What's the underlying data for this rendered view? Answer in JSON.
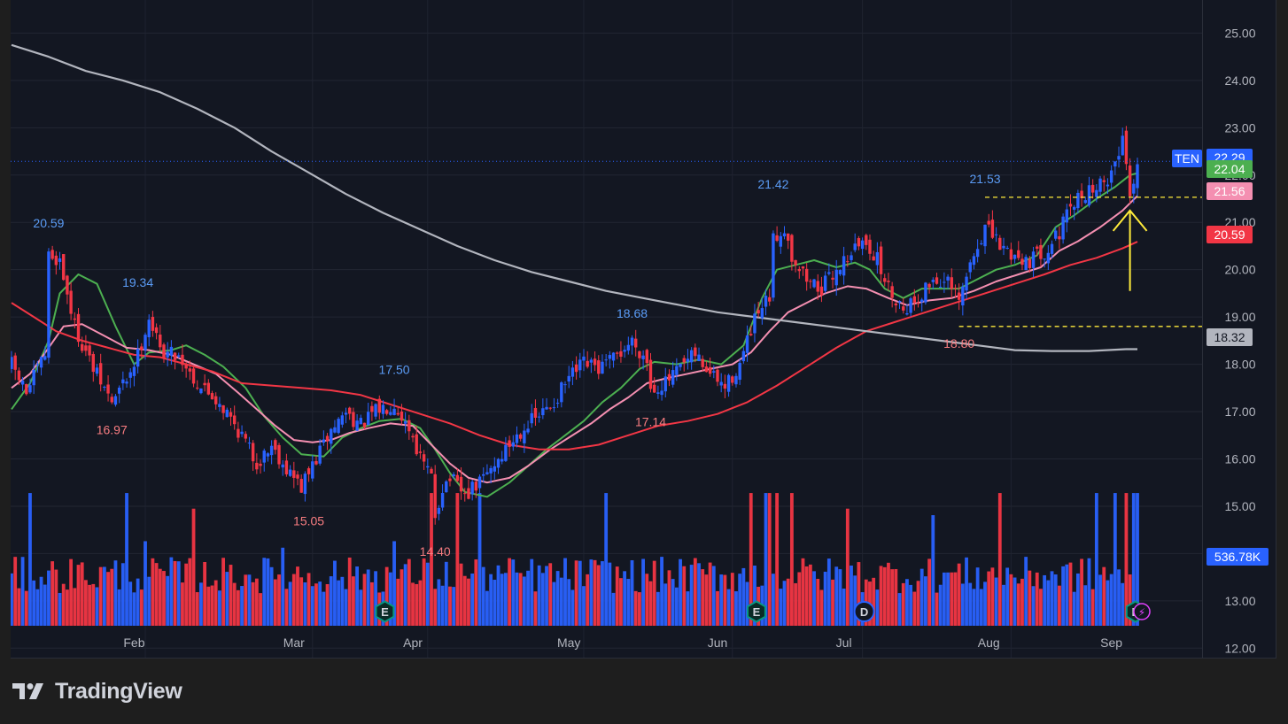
{
  "chart_data": {
    "type": "candlestick",
    "symbol": "TEN",
    "x_tick_labels": [
      "Feb",
      "Mar",
      "Apr",
      "May",
      "Jun",
      "Jul",
      "Aug",
      "Sep"
    ],
    "ylim": [
      11.8,
      25.7
    ],
    "y_tick_labels": [
      "25.00",
      "24.00",
      "23.00",
      "22.00",
      "21.00",
      "20.00",
      "19.00",
      "18.00",
      "17.00",
      "16.00",
      "15.00",
      "14.00",
      "13.00",
      "12.00"
    ],
    "price_badges": [
      {
        "label": "TEN",
        "value": "22.29",
        "color": "#2962ff"
      },
      {
        "label": "",
        "value": "22.04",
        "color": "#4caf50"
      },
      {
        "label": "",
        "value": "21.56",
        "color": "#f48fb1"
      },
      {
        "label": "",
        "value": "20.59",
        "color": "#f23645"
      },
      {
        "label": "",
        "value": "18.32",
        "color": "#b2b5be"
      },
      {
        "label": "",
        "value": "536.78K",
        "color": "#2962ff"
      }
    ],
    "high_low_labels": [
      {
        "text": "20.59",
        "kind": "high",
        "day": 10
      },
      {
        "text": "19.34",
        "kind": "high",
        "day": 34
      },
      {
        "text": "16.97",
        "kind": "low",
        "day": 27
      },
      {
        "text": "15.05",
        "kind": "low",
        "day": 80
      },
      {
        "text": "17.50",
        "kind": "high",
        "day": 103
      },
      {
        "text": "14.40",
        "kind": "low",
        "day": 114
      },
      {
        "text": "18.68",
        "kind": "high",
        "day": 167
      },
      {
        "text": "17.14",
        "kind": "low",
        "day": 172
      },
      {
        "text": "21.42",
        "kind": "high",
        "day": 205
      },
      {
        "text": "21.53",
        "kind": "high",
        "day": 262
      },
      {
        "text": "18.80",
        "kind": "low",
        "day": 255
      }
    ],
    "hlines": [
      {
        "y": 21.53,
        "color": "#ffeb3b",
        "style": "dashed"
      },
      {
        "y": 18.8,
        "color": "#ffeb3b",
        "style": "dashed"
      }
    ],
    "annotations": [
      {
        "type": "arrow",
        "color": "#ffeb3b",
        "day": 301,
        "from_y": 19.55,
        "to_y": 21.25
      }
    ],
    "event_markers": [
      {
        "label": "E",
        "day": 100
      },
      {
        "label": "E",
        "day": 200
      },
      {
        "label": "D",
        "day": 229
      },
      {
        "label": "E",
        "day": 302
      }
    ],
    "moving_averages": [
      {
        "color": "#4caf50",
        "points": [
          [
            0,
            17.05
          ],
          [
            5,
            17.6
          ],
          [
            10,
            18.5
          ],
          [
            13,
            19.5
          ],
          [
            18,
            19.9
          ],
          [
            23,
            19.7
          ],
          [
            28,
            18.8
          ],
          [
            33,
            18.0
          ],
          [
            37,
            18.25
          ],
          [
            43,
            18.3
          ],
          [
            47,
            18.4
          ],
          [
            52,
            18.2
          ],
          [
            57,
            17.95
          ],
          [
            63,
            17.5
          ],
          [
            68,
            16.9
          ],
          [
            73,
            16.45
          ],
          [
            78,
            16.1
          ],
          [
            84,
            16.05
          ],
          [
            89,
            16.45
          ],
          [
            94,
            16.65
          ],
          [
            99,
            16.8
          ],
          [
            105,
            16.85
          ],
          [
            110,
            16.65
          ],
          [
            114,
            16.2
          ],
          [
            118,
            15.7
          ],
          [
            122,
            15.3
          ],
          [
            128,
            15.2
          ],
          [
            134,
            15.5
          ],
          [
            139,
            15.85
          ],
          [
            144,
            16.2
          ],
          [
            149,
            16.5
          ],
          [
            154,
            16.8
          ],
          [
            159,
            17.2
          ],
          [
            164,
            17.5
          ],
          [
            169,
            17.9
          ],
          [
            173,
            18.05
          ],
          [
            179,
            18.0
          ],
          [
            185,
            18.1
          ],
          [
            191,
            18.0
          ],
          [
            197,
            18.4
          ],
          [
            202,
            19.4
          ],
          [
            206,
            20.0
          ],
          [
            211,
            20.1
          ],
          [
            216,
            20.2
          ],
          [
            222,
            20.05
          ],
          [
            227,
            20.15
          ],
          [
            231,
            20.0
          ],
          [
            235,
            19.6
          ],
          [
            240,
            19.4
          ],
          [
            245,
            19.6
          ],
          [
            250,
            19.6
          ],
          [
            255,
            19.6
          ],
          [
            260,
            19.8
          ],
          [
            265,
            20.0
          ],
          [
            270,
            20.1
          ],
          [
            276,
            20.3
          ],
          [
            281,
            20.9
          ],
          [
            286,
            21.15
          ],
          [
            292,
            21.5
          ],
          [
            297,
            21.75
          ],
          [
            301,
            22.0
          ],
          [
            303,
            22.04
          ]
        ]
      },
      {
        "color": "#f48fb1",
        "points": [
          [
            0,
            17.5
          ],
          [
            5,
            17.8
          ],
          [
            10,
            18.35
          ],
          [
            14,
            18.8
          ],
          [
            19,
            18.85
          ],
          [
            25,
            18.6
          ],
          [
            31,
            18.35
          ],
          [
            37,
            18.3
          ],
          [
            43,
            18.2
          ],
          [
            49,
            18.0
          ],
          [
            55,
            17.8
          ],
          [
            61,
            17.4
          ],
          [
            66,
            17.05
          ],
          [
            71,
            16.7
          ],
          [
            76,
            16.4
          ],
          [
            81,
            16.35
          ],
          [
            86,
            16.4
          ],
          [
            91,
            16.55
          ],
          [
            96,
            16.65
          ],
          [
            102,
            16.75
          ],
          [
            108,
            16.7
          ],
          [
            113,
            16.3
          ],
          [
            118,
            15.9
          ],
          [
            123,
            15.6
          ],
          [
            128,
            15.5
          ],
          [
            134,
            15.6
          ],
          [
            139,
            15.85
          ],
          [
            145,
            16.2
          ],
          [
            150,
            16.45
          ],
          [
            156,
            16.75
          ],
          [
            161,
            17.05
          ],
          [
            166,
            17.3
          ],
          [
            171,
            17.6
          ],
          [
            176,
            17.7
          ],
          [
            182,
            17.8
          ],
          [
            188,
            17.9
          ],
          [
            194,
            18.0
          ],
          [
            199,
            18.25
          ],
          [
            204,
            18.7
          ],
          [
            209,
            19.1
          ],
          [
            214,
            19.3
          ],
          [
            219,
            19.5
          ],
          [
            225,
            19.65
          ],
          [
            230,
            19.6
          ],
          [
            236,
            19.4
          ],
          [
            241,
            19.25
          ],
          [
            247,
            19.35
          ],
          [
            253,
            19.4
          ],
          [
            259,
            19.55
          ],
          [
            265,
            19.75
          ],
          [
            271,
            19.9
          ],
          [
            277,
            20.05
          ],
          [
            282,
            20.4
          ],
          [
            287,
            20.6
          ],
          [
            293,
            20.9
          ],
          [
            299,
            21.25
          ],
          [
            303,
            21.56
          ]
        ]
      },
      {
        "color": "#f23645",
        "points": [
          [
            0,
            19.3
          ],
          [
            6,
            19.0
          ],
          [
            12,
            18.7
          ],
          [
            19,
            18.5
          ],
          [
            26,
            18.35
          ],
          [
            33,
            18.2
          ],
          [
            40,
            18.15
          ],
          [
            47,
            18.0
          ],
          [
            54,
            17.85
          ],
          [
            62,
            17.6
          ],
          [
            70,
            17.55
          ],
          [
            78,
            17.5
          ],
          [
            86,
            17.45
          ],
          [
            94,
            17.35
          ],
          [
            102,
            17.15
          ],
          [
            110,
            16.95
          ],
          [
            118,
            16.75
          ],
          [
            126,
            16.5
          ],
          [
            134,
            16.3
          ],
          [
            142,
            16.2
          ],
          [
            150,
            16.2
          ],
          [
            158,
            16.3
          ],
          [
            166,
            16.5
          ],
          [
            174,
            16.7
          ],
          [
            182,
            16.8
          ],
          [
            190,
            16.95
          ],
          [
            198,
            17.2
          ],
          [
            206,
            17.55
          ],
          [
            214,
            17.95
          ],
          [
            222,
            18.35
          ],
          [
            230,
            18.7
          ],
          [
            238,
            18.9
          ],
          [
            246,
            19.1
          ],
          [
            254,
            19.3
          ],
          [
            262,
            19.5
          ],
          [
            270,
            19.7
          ],
          [
            278,
            19.9
          ],
          [
            285,
            20.1
          ],
          [
            292,
            20.25
          ],
          [
            299,
            20.45
          ],
          [
            303,
            20.59
          ]
        ]
      },
      {
        "color": "#b2b5be",
        "points": [
          [
            0,
            24.75
          ],
          [
            10,
            24.5
          ],
          [
            20,
            24.2
          ],
          [
            30,
            24.0
          ],
          [
            40,
            23.75
          ],
          [
            50,
            23.4
          ],
          [
            60,
            23.0
          ],
          [
            70,
            22.5
          ],
          [
            80,
            22.05
          ],
          [
            90,
            21.6
          ],
          [
            100,
            21.2
          ],
          [
            110,
            20.85
          ],
          [
            120,
            20.5
          ],
          [
            130,
            20.2
          ],
          [
            140,
            19.95
          ],
          [
            150,
            19.75
          ],
          [
            160,
            19.55
          ],
          [
            170,
            19.4
          ],
          [
            180,
            19.25
          ],
          [
            190,
            19.1
          ],
          [
            200,
            19.0
          ],
          [
            210,
            18.9
          ],
          [
            220,
            18.8
          ],
          [
            230,
            18.7
          ],
          [
            240,
            18.6
          ],
          [
            250,
            18.5
          ],
          [
            260,
            18.4
          ],
          [
            270,
            18.3
          ],
          [
            280,
            18.28
          ],
          [
            290,
            18.28
          ],
          [
            300,
            18.32
          ],
          [
            303,
            18.32
          ]
        ]
      }
    ],
    "anchors": [
      [
        0,
        18.0
      ],
      [
        4,
        17.4
      ],
      [
        9,
        18.2
      ],
      [
        10,
        20.3
      ],
      [
        13,
        20.2
      ],
      [
        17,
        18.8
      ],
      [
        22,
        17.9
      ],
      [
        27,
        17.2
      ],
      [
        31,
        17.7
      ],
      [
        34,
        18.2
      ],
      [
        37,
        19.0
      ],
      [
        40,
        18.3
      ],
      [
        45,
        18.2
      ],
      [
        50,
        17.6
      ],
      [
        56,
        17.2
      ],
      [
        62,
        16.5
      ],
      [
        66,
        15.9
      ],
      [
        70,
        16.3
      ],
      [
        74,
        15.8
      ],
      [
        78,
        15.4
      ],
      [
        82,
        16.0
      ],
      [
        86,
        16.6
      ],
      [
        90,
        17.0
      ],
      [
        94,
        16.7
      ],
      [
        98,
        17.0
      ],
      [
        103,
        17.2
      ],
      [
        108,
        16.5
      ],
      [
        110,
        16.0
      ],
      [
        113,
        15.6
      ],
      [
        114,
        14.8
      ],
      [
        116,
        15.4
      ],
      [
        118,
        15.6
      ],
      [
        122,
        15.2
      ],
      [
        126,
        15.5
      ],
      [
        130,
        15.9
      ],
      [
        134,
        16.3
      ],
      [
        138,
        16.7
      ],
      [
        142,
        16.9
      ],
      [
        146,
        17.2
      ],
      [
        150,
        17.7
      ],
      [
        154,
        18.0
      ],
      [
        158,
        17.9
      ],
      [
        162,
        18.1
      ],
      [
        167,
        18.5
      ],
      [
        171,
        18.1
      ],
      [
        172,
        17.5
      ],
      [
        176,
        17.6
      ],
      [
        180,
        17.9
      ],
      [
        184,
        18.2
      ],
      [
        188,
        17.8
      ],
      [
        192,
        17.5
      ],
      [
        196,
        18.0
      ],
      [
        200,
        18.9
      ],
      [
        204,
        19.4
      ],
      [
        205,
        20.6
      ],
      [
        208,
        20.9
      ],
      [
        210,
        20.3
      ],
      [
        214,
        19.8
      ],
      [
        218,
        19.6
      ],
      [
        222,
        20.0
      ],
      [
        226,
        20.4
      ],
      [
        230,
        20.6
      ],
      [
        233,
        20.2
      ],
      [
        236,
        19.6
      ],
      [
        240,
        19.2
      ],
      [
        244,
        19.4
      ],
      [
        248,
        19.8
      ],
      [
        252,
        19.7
      ],
      [
        255,
        19.3
      ],
      [
        258,
        20.1
      ],
      [
        262,
        20.9
      ],
      [
        266,
        20.5
      ],
      [
        270,
        20.3
      ],
      [
        274,
        20.2
      ],
      [
        278,
        20.4
      ],
      [
        282,
        20.8
      ],
      [
        286,
        21.4
      ],
      [
        290,
        21.7
      ],
      [
        294,
        21.8
      ],
      [
        298,
        22.4
      ],
      [
        299,
        22.9
      ],
      [
        301,
        21.6
      ],
      [
        303,
        22.29
      ]
    ],
    "volume_spikes": [
      [
        5,
        1.5
      ],
      [
        31,
        1.2
      ],
      [
        36,
        0.65
      ],
      [
        49,
        0.9
      ],
      [
        73,
        0.6
      ],
      [
        103,
        0.65
      ],
      [
        113,
        3.8
      ],
      [
        120,
        2.2
      ],
      [
        126,
        1.5
      ],
      [
        160,
        1.3
      ],
      [
        199,
        2.0
      ],
      [
        203,
        2.9
      ],
      [
        204,
        2.8
      ],
      [
        206,
        1.8
      ],
      [
        210,
        1.1
      ],
      [
        225,
        0.9
      ],
      [
        248,
        0.85
      ],
      [
        266,
        1.1
      ],
      [
        292,
        1.5
      ],
      [
        297,
        2.9
      ],
      [
        300,
        1.7
      ],
      [
        302,
        1.9
      ],
      [
        303,
        1.5
      ]
    ],
    "volume_ylim": [
      0,
      2000000
    ]
  }
}
